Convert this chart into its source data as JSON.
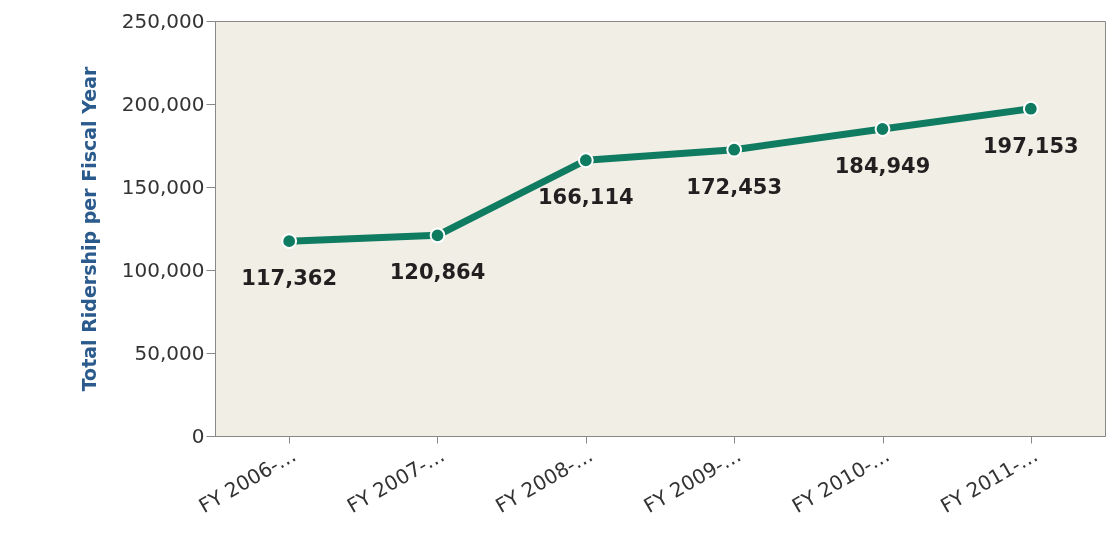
{
  "chart_data": {
    "type": "line",
    "ylabel": "Total Ridership per Fiscal Year",
    "categories": [
      "FY 2006-…",
      "FY 2007-…",
      "FY 2008-…",
      "FY 2009-…",
      "FY 2010-…",
      "FY 2011-…"
    ],
    "series": [
      {
        "color": "#0f7b60",
        "values": [
          117362,
          120864,
          166114,
          172453,
          184949,
          197153
        ],
        "value_labels": [
          "117,362",
          "120,864",
          "166,114",
          "172,453",
          "184,949",
          "197,153"
        ]
      }
    ],
    "ylim": [
      0,
      250000
    ],
    "yticks": [
      {
        "value": 0,
        "label": "0"
      },
      {
        "value": 50000,
        "label": "50,000"
      },
      {
        "value": 100000,
        "label": "100,000"
      },
      {
        "value": 150000,
        "label": "150,000"
      },
      {
        "value": 200000,
        "label": "200,000"
      },
      {
        "value": 250000,
        "label": "250,000"
      }
    ],
    "grid": false,
    "legend": false,
    "marker": "circle",
    "line_style": "solid"
  }
}
